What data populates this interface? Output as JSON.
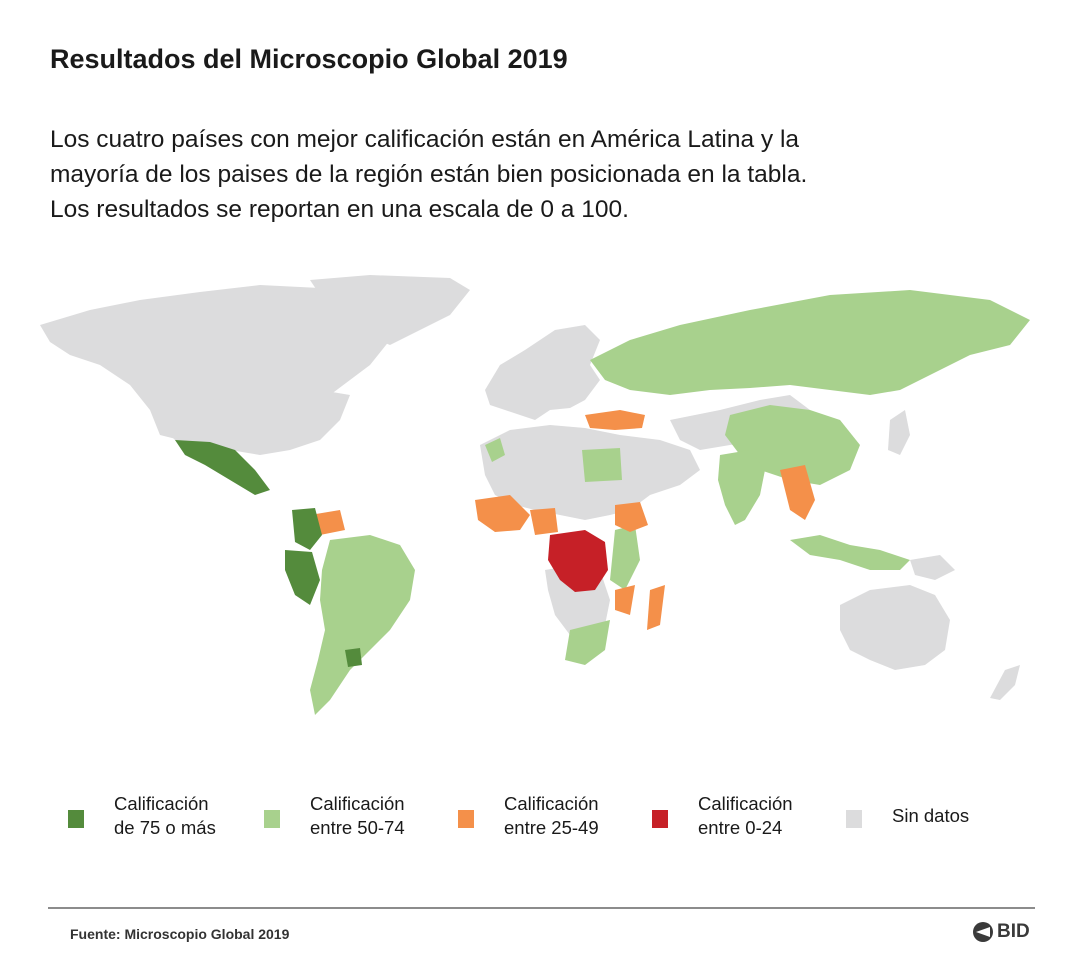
{
  "header": {
    "title": "Resultados del Microscopio Global 2019",
    "subtitle_lines": [
      "Los cuatro países con mejor calificación están en América Latina y la",
      "mayoría de los paises de la región están bien posicionada en la tabla.",
      "Los resultados se reportan en una escala de 0 a 100."
    ]
  },
  "colors": {
    "top": "#548b3c",
    "mid_high": "#a8d18d",
    "mid_low": "#f4904a",
    "low": "#c62027",
    "no_data": "#dcdcdd"
  },
  "legend": [
    {
      "line1": "Calificación",
      "line2": "de 75 o más",
      "color": "#548b3c"
    },
    {
      "line1": "Calificación",
      "line2": "entre 50-74",
      "color": "#a8d18d"
    },
    {
      "line1": "Calificación",
      "line2": "entre 25-49",
      "color": "#f4904a"
    },
    {
      "line1": "Calificación",
      "line2": "entre 0-24",
      "color": "#c62027"
    },
    {
      "line1": "Sin datos",
      "line2": "",
      "color": "#dcdcdd"
    }
  ],
  "footer": {
    "source": "Fuente: Microscopio Global 2019",
    "logo_text": "BID",
    "logo_icon": "bid-logo-icon"
  }
}
